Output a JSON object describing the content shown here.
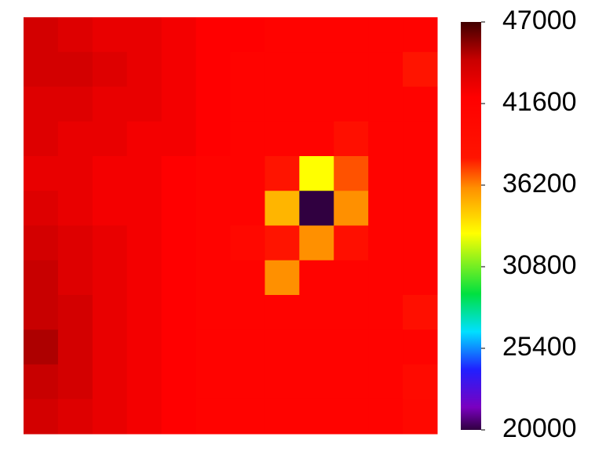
{
  "chart_data": {
    "type": "heatmap",
    "rows": 12,
    "cols": 12,
    "values": [
      [
        44000,
        43500,
        43000,
        43000,
        42500,
        42000,
        42000,
        41500,
        41500,
        41500,
        41500,
        41500
      ],
      [
        44000,
        44000,
        43500,
        43000,
        42500,
        42000,
        41500,
        41500,
        41500,
        41500,
        41500,
        38000
      ],
      [
        43500,
        43500,
        43000,
        43000,
        42500,
        42000,
        41500,
        41500,
        41500,
        41500,
        41500,
        41500
      ],
      [
        43500,
        43000,
        43000,
        42500,
        42500,
        42000,
        41500,
        41500,
        41500,
        39000,
        41500,
        41500
      ],
      [
        43000,
        43000,
        42500,
        42500,
        42000,
        41500,
        41500,
        38000,
        33000,
        37000,
        41500,
        41500
      ],
      [
        43500,
        43000,
        42500,
        42500,
        42000,
        41500,
        41500,
        35000,
        20000,
        36000,
        41500,
        41500
      ],
      [
        44000,
        43500,
        43000,
        42500,
        42000,
        41500,
        40500,
        38000,
        36000,
        39000,
        41500,
        41500
      ],
      [
        44500,
        43500,
        43000,
        42500,
        42000,
        41500,
        41500,
        36000,
        41500,
        41500,
        41500,
        41500
      ],
      [
        44500,
        44000,
        43000,
        42500,
        42000,
        41500,
        41500,
        41500,
        41500,
        41500,
        41500,
        39000
      ],
      [
        45000,
        44000,
        43000,
        42500,
        42000,
        41500,
        41500,
        41500,
        41500,
        41500,
        41500,
        41500
      ],
      [
        44500,
        44000,
        43000,
        42500,
        42000,
        41500,
        41500,
        41500,
        41500,
        41500,
        41500,
        40000
      ],
      [
        44000,
        43500,
        43000,
        42500,
        42000,
        41500,
        41500,
        41500,
        41500,
        41500,
        41500,
        40500
      ]
    ],
    "colorscale": [
      {
        "value": 20000,
        "color": "#300040"
      },
      {
        "value": 21500,
        "color": "#7a00c0"
      },
      {
        "value": 24000,
        "color": "#2020ff"
      },
      {
        "value": 26500,
        "color": "#00e0ff"
      },
      {
        "value": 29000,
        "color": "#00e040"
      },
      {
        "value": 33000,
        "color": "#ffff00"
      },
      {
        "value": 36000,
        "color": "#ff9000"
      },
      {
        "value": 38000,
        "color": "#ff1400"
      },
      {
        "value": 42000,
        "color": "#ff0000"
      },
      {
        "value": 44500,
        "color": "#c80000"
      },
      {
        "value": 47000,
        "color": "#400000"
      }
    ],
    "clim": [
      20000,
      47000
    ],
    "cticks": [
      20000,
      25400,
      30800,
      36200,
      41600,
      47000
    ]
  }
}
